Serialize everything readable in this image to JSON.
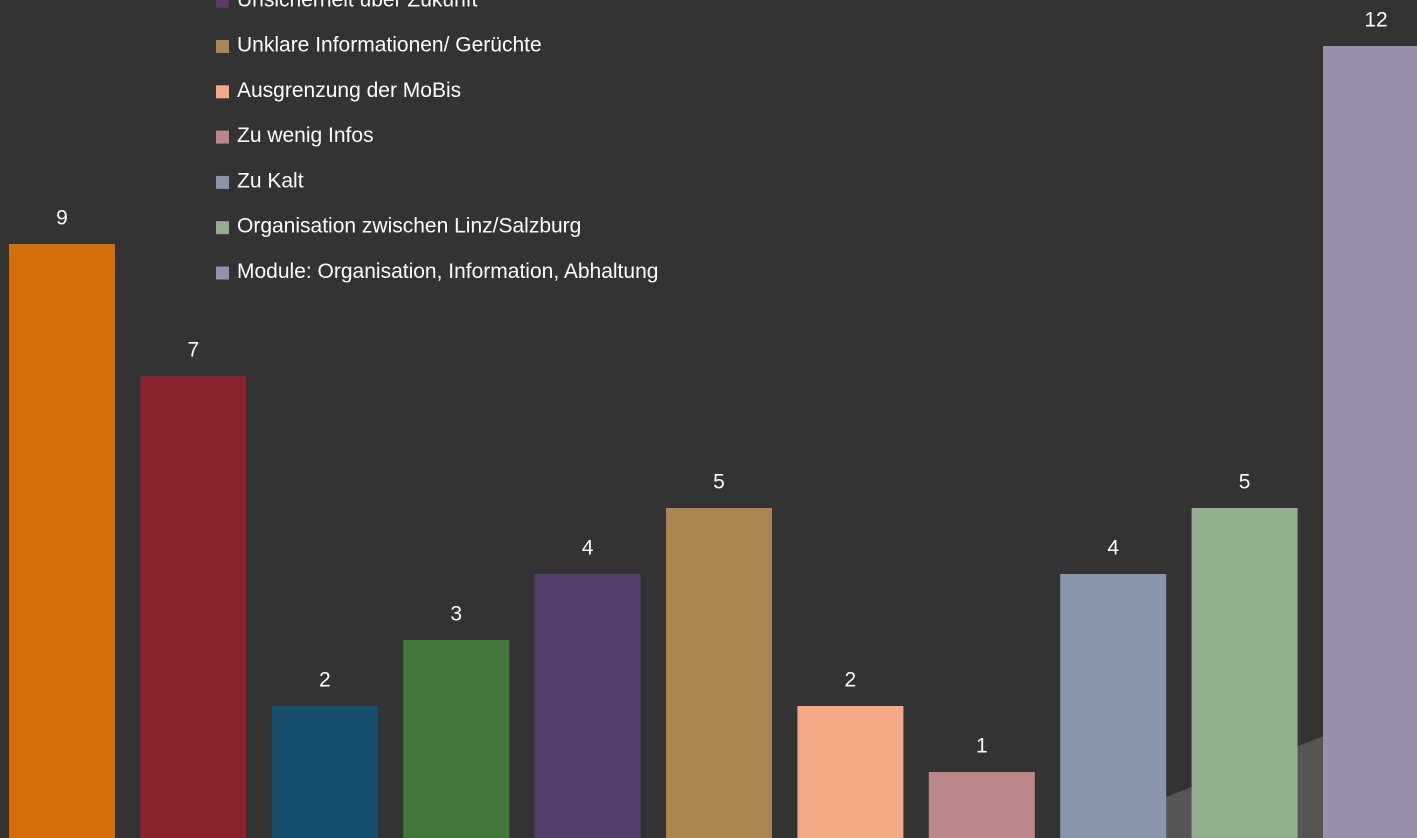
{
  "chart_data": {
    "type": "bar",
    "series": [
      {
        "name": null,
        "color": "#d46f0a",
        "values": [
          9
        ]
      },
      {
        "name": null,
        "color": "#8b2230",
        "values": [
          7
        ]
      },
      {
        "name": null,
        "color": "#184e6e",
        "values": [
          2
        ]
      },
      {
        "name": null,
        "color": "#44773b",
        "values": [
          3
        ]
      },
      {
        "name": "Unsicherheit über Zukunft",
        "color": "#553d6a",
        "values": [
          4
        ]
      },
      {
        "name": "Unklare Informationen/ Gerüchte",
        "color": "#ab8650",
        "values": [
          5
        ]
      },
      {
        "name": "Ausgrenzung der MoBis",
        "color": "#f4a886",
        "values": [
          2
        ]
      },
      {
        "name": "Zu wenig Infos",
        "color": "#bb8789",
        "values": [
          1
        ]
      },
      {
        "name": "Zu Kalt",
        "color": "#8796a8",
        "values": [
          4
        ]
      },
      {
        "name": "Organisation zwischen Linz/Salzburg",
        "color": "#93ae8d",
        "values": [
          5
        ]
      },
      {
        "name": "Module: Organisation, Information, Abhaltung",
        "color": "#9a8fa8",
        "values": [
          12
        ]
      }
    ]
  }
}
